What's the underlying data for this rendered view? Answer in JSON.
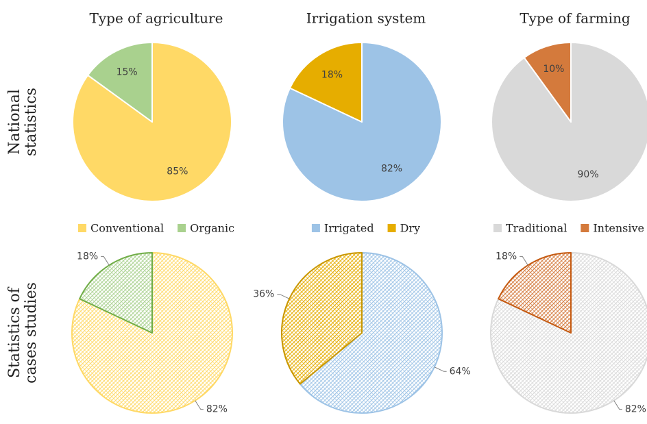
{
  "row_labels": [
    [
      "National",
      "statistics"
    ],
    [
      "Statistics of",
      "cases studies"
    ]
  ],
  "chart_data": [
    {
      "type": "pie",
      "title": "Type of agriculture",
      "categories": [
        "Conventional",
        "Organic"
      ],
      "values": [
        85,
        15
      ],
      "value_labels": [
        "85%",
        "15%"
      ],
      "colors": [
        "#ffd966",
        "#a9d18e"
      ],
      "legend": "bottom"
    },
    {
      "type": "pie",
      "title": "Irrigation system",
      "categories": [
        "Irrigated",
        "Dry"
      ],
      "values": [
        82,
        18
      ],
      "value_labels": [
        "82%",
        "18%"
      ],
      "colors": [
        "#9dc3e6",
        "#e6ad00"
      ],
      "legend": "bottom"
    },
    {
      "type": "pie",
      "title": "Type of farming",
      "categories": [
        "Traditional",
        "Intensive"
      ],
      "values": [
        90,
        10
      ],
      "value_labels": [
        "90%",
        "10%"
      ],
      "colors": [
        "#d9d9d9",
        "#d47a3c"
      ],
      "legend": "bottom"
    },
    {
      "type": "pie",
      "pattern": "hatch",
      "labels": "outside",
      "values": [
        82,
        18
      ],
      "value_labels": [
        "82%",
        "18%"
      ],
      "colors": [
        "#ffd966",
        "#a9d18e"
      ],
      "edge_colors": [
        "#ffd966",
        "#70ad47"
      ]
    },
    {
      "type": "pie",
      "pattern": "hatch",
      "labels": "outside",
      "values": [
        64,
        36
      ],
      "value_labels": [
        "64%",
        "36%"
      ],
      "colors": [
        "#9dc3e6",
        "#e6ad00"
      ],
      "edge_colors": [
        "#9dc3e6",
        "#c99700"
      ]
    },
    {
      "type": "pie",
      "pattern": "hatch",
      "labels": "outside",
      "values": [
        82,
        18
      ],
      "value_labels": [
        "82%",
        "18%"
      ],
      "colors": [
        "#d9d9d9",
        "#d47a3c"
      ],
      "edge_colors": [
        "#d9d9d9",
        "#c55a11"
      ]
    }
  ]
}
